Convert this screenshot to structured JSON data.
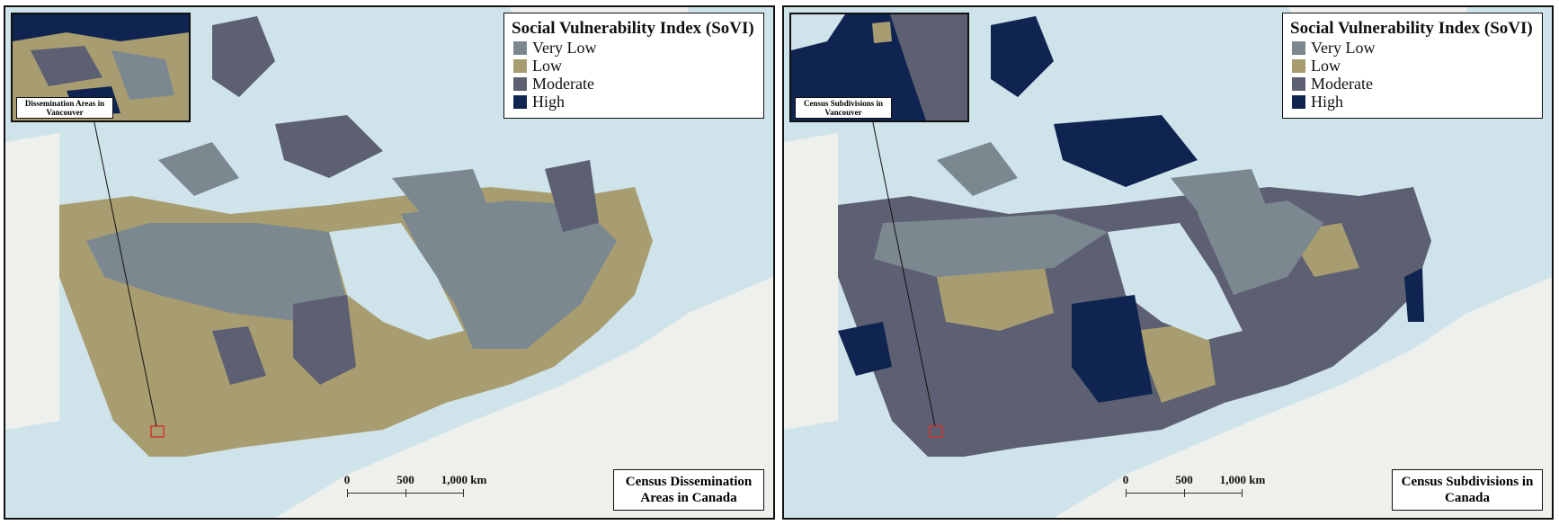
{
  "colors": {
    "very_low": "#7b8890",
    "low": "#a89d70",
    "moderate": "#5d5f72",
    "high": "#0f2450",
    "water": "#cfe3ea",
    "land_other": "#eef0ec"
  },
  "legend": {
    "title": "Social Vulnerability Index (SoVI)",
    "items": [
      {
        "label": "Very Low",
        "color": "#7b8890"
      },
      {
        "label": "Low",
        "color": "#a89d70"
      },
      {
        "label": "Moderate",
        "color": "#5d5f72"
      },
      {
        "label": "High",
        "color": "#0f2450"
      }
    ]
  },
  "scale": {
    "labels": [
      "0",
      "500",
      "1,000 km"
    ]
  },
  "left_map": {
    "caption": "Census Dissemination Areas in Canada",
    "inset_caption": "Dissemination Areas in Vancouver"
  },
  "right_map": {
    "caption": "Census Subdivisions in Canada",
    "inset_caption": "Census Subdivisions in Vancouver"
  }
}
